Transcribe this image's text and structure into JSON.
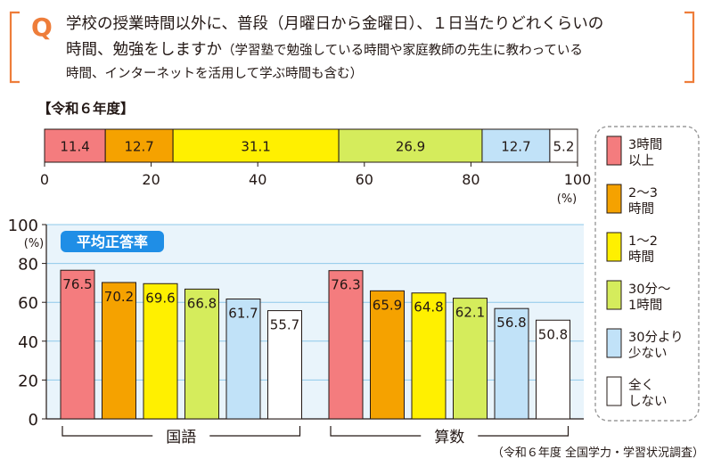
{
  "question": {
    "mark": "Q",
    "line1": "学校の授業時間以外に、普段（月曜日から金曜日）、１日当たりどれくらいの",
    "line2_main": "時間、勉強をしますか",
    "line2_note": "（学習塾で勉強している時間や家庭教師の先生に教わっている",
    "line3": "時間、インターネットを活用して学ぶ時間も含む）"
  },
  "legend": {
    "items": [
      {
        "lines": [
          "3時間",
          "以上"
        ],
        "color": "#f47c7e"
      },
      {
        "lines": [
          "2～3",
          "時間"
        ],
        "color": "#f5a200"
      },
      {
        "lines": [
          "1～2",
          "時間"
        ],
        "color": "#fff000"
      },
      {
        "lines": [
          "30分～",
          "1時間"
        ],
        "color": "#d5ec5c"
      },
      {
        "lines": [
          "30分より",
          "少ない"
        ],
        "color": "#c1e2f8"
      },
      {
        "lines": [
          "全く",
          "しない"
        ],
        "color": "#ffffff"
      }
    ]
  },
  "source": "（令和６年度 全国学力・学習状況調査）",
  "chart_data": [
    {
      "type": "bar",
      "orientation": "horizontal-stacked",
      "title": "【令和６年度】",
      "categories": [
        "3時間以上",
        "2～3時間",
        "1～2時間",
        "30分～1時間",
        "30分より少ない",
        "全くしない"
      ],
      "values": [
        11.4,
        12.7,
        31.1,
        26.9,
        12.7,
        5.2
      ],
      "xlim": [
        0,
        100
      ],
      "xticks": [
        0,
        20,
        40,
        60,
        80,
        100
      ],
      "xunit": "(%)",
      "colors": [
        "#f47c7e",
        "#f5a200",
        "#fff000",
        "#d5ec5c",
        "#c1e2f8",
        "#ffffff"
      ]
    },
    {
      "type": "bar",
      "badge": "平均正答率",
      "groups": [
        "国語",
        "算数"
      ],
      "categories": [
        "3時間以上",
        "2～3時間",
        "1～2時間",
        "30分～1時間",
        "30分より少ない",
        "全くしない"
      ],
      "values": [
        [
          76.5,
          70.2,
          69.6,
          66.8,
          61.7,
          55.7
        ],
        [
          76.3,
          65.9,
          64.8,
          62.1,
          56.8,
          50.8
        ]
      ],
      "ylim": [
        0,
        100
      ],
      "yticks": [
        0,
        20,
        40,
        60,
        80,
        100
      ],
      "yunit": "(%)",
      "grid": true,
      "colors": [
        "#f47c7e",
        "#f5a200",
        "#fff000",
        "#d5ec5c",
        "#c1e2f8",
        "#ffffff"
      ]
    }
  ]
}
